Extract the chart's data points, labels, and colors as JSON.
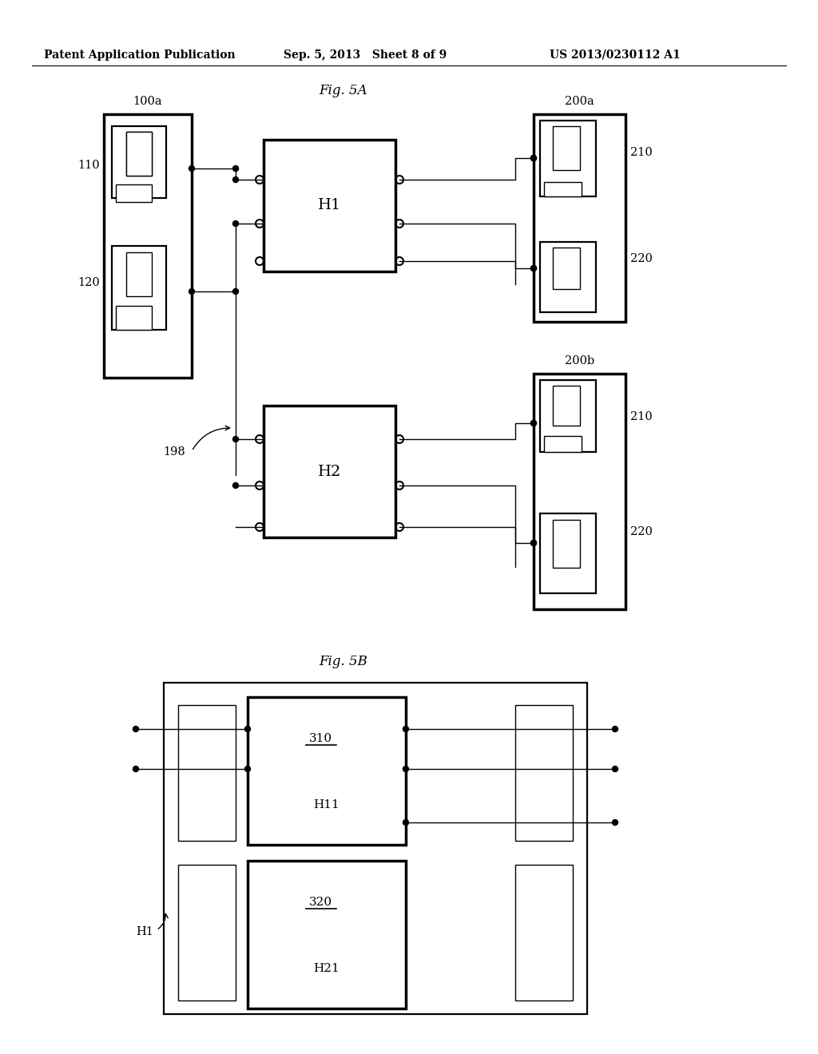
{
  "header_left": "Patent Application Publication",
  "header_mid": "Sep. 5, 2013   Sheet 8 of 9",
  "header_right": "US 2013/0230112 A1",
  "fig5a_title": "Fig. 5A",
  "fig5b_title": "Fig. 5B",
  "background": "#ffffff"
}
